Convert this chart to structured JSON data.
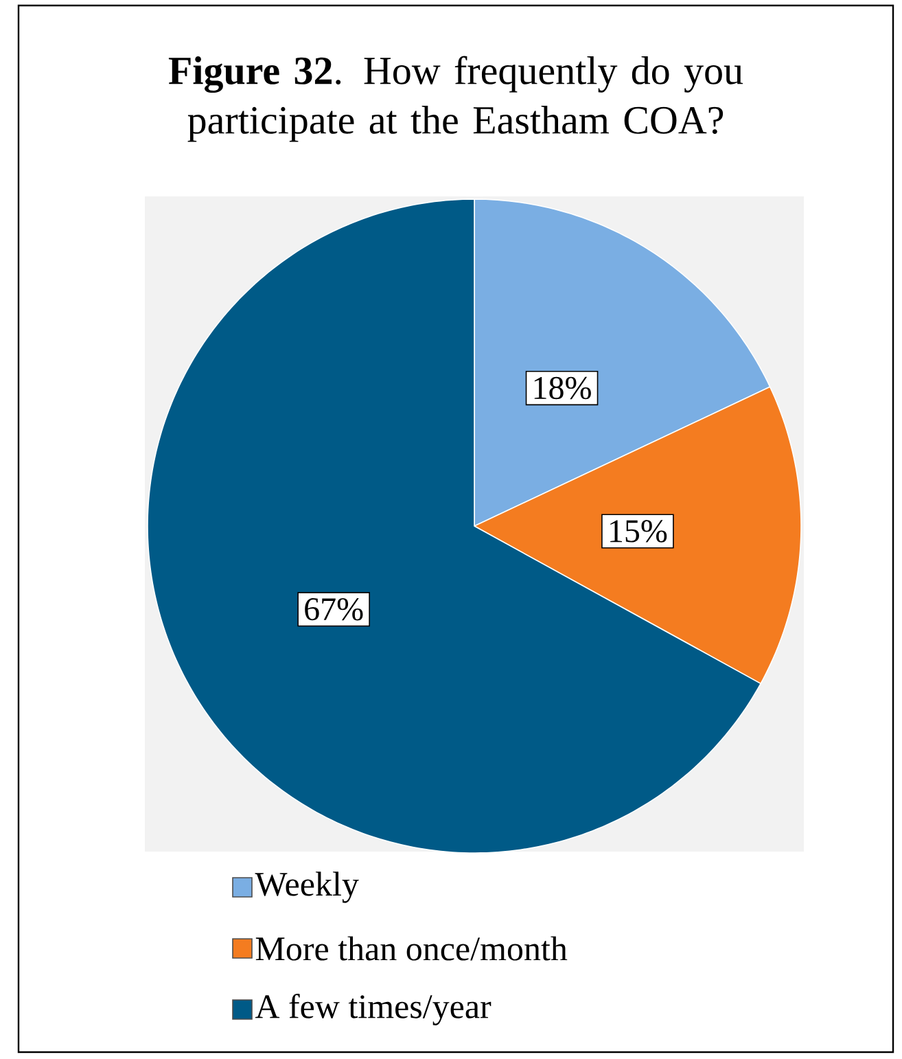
{
  "chart_data": {
    "type": "pie",
    "title": "**Figure 32**. How frequently do you participate at the Eastham COA?",
    "categories": [
      "Weekly",
      "More than once/month",
      "A few times/year"
    ],
    "values": [
      18,
      15,
      67
    ],
    "value_labels": [
      "18%",
      "15%",
      "67%"
    ],
    "colors": [
      "#7aaee3",
      "#f47c20",
      "#005a87"
    ],
    "legend": "bottom"
  }
}
